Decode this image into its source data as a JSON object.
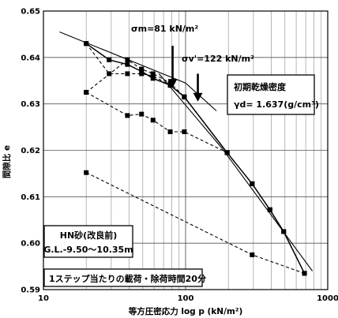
{
  "chart_data": {
    "type": "line",
    "xscale": "log",
    "xlim": [
      10,
      1000
    ],
    "ylim": [
      0.59,
      0.65
    ],
    "xlabel": "等方圧密応力 log p (kN/m²)",
    "ylabel": "間隙比 e",
    "xticks": [
      "10",
      "100",
      "1000"
    ],
    "yticks": [
      "0.59",
      "0.60",
      "0.61",
      "0.62",
      "0.63",
      "0.64",
      "0.65"
    ],
    "grid": true,
    "annotations": {
      "sigma_m": "σm=81 kN/m²",
      "sigma_v": "σv'=122 kN/m²",
      "density_title": "初期乾燥密度",
      "density_value": "γd= 1.637(g/cm³)",
      "sample_name": "HN砂(改良前)",
      "sample_depth": "G.L.-9.50〜10.35m",
      "loading_note": "1ステップ当たりの載荷・除荷時間20分"
    },
    "series": [
      {
        "style": "solid-markers",
        "x": [
          20,
          29,
          39,
          49,
          59,
          78,
          98,
          196,
          294,
          392,
          490,
          686
        ],
        "y": [
          0.643,
          0.6395,
          0.6385,
          0.637,
          0.6355,
          0.634,
          0.6315,
          0.6195,
          0.6128,
          0.6072,
          0.6025,
          0.5935
        ]
      },
      {
        "style": "dashed-markers",
        "x": [
          20,
          29,
          39,
          49,
          59,
          78,
          98,
          196
        ],
        "y": [
          0.643,
          0.6365,
          0.6365,
          0.6365,
          0.636,
          0.634,
          0.6315,
          0.6195
        ]
      },
      {
        "style": "dashed-markers",
        "x": [
          20,
          39,
          49,
          59,
          78,
          98,
          196
        ],
        "y": [
          0.6325,
          0.6275,
          0.6278,
          0.6265,
          0.624,
          0.624,
          0.6195
        ]
      },
      {
        "style": "dashed-markers",
        "x": [
          20,
          39,
          49,
          59,
          78,
          98,
          196
        ],
        "y": [
          0.6325,
          0.6395,
          0.6375,
          0.6365,
          0.6345,
          0.6315,
          0.6195
        ]
      },
      {
        "style": "dashed",
        "x": [
          20,
          294,
          686
        ],
        "y": [
          0.6152,
          0.5975,
          0.5935
        ]
      },
      {
        "style": "dotted-markers",
        "x": [
          294,
          392,
          490,
          686
        ],
        "y": [
          0.6128,
          0.6072,
          0.6025,
          0.5935
        ]
      }
    ],
    "construction_lines": [
      {
        "x": [
          13,
          100,
          165
        ],
        "y": [
          0.6455,
          0.6345,
          0.6285
        ]
      },
      {
        "x": [
          65,
          180,
          780
        ],
        "y": [
          0.6365,
          0.6205,
          0.594
        ]
      }
    ],
    "markers": [
      {
        "x": 81,
        "y_top": 0.6425,
        "y_bottom": 0.6335
      },
      {
        "x": 122,
        "y_top": 0.6365,
        "y_bottom": 0.6305
      }
    ]
  }
}
